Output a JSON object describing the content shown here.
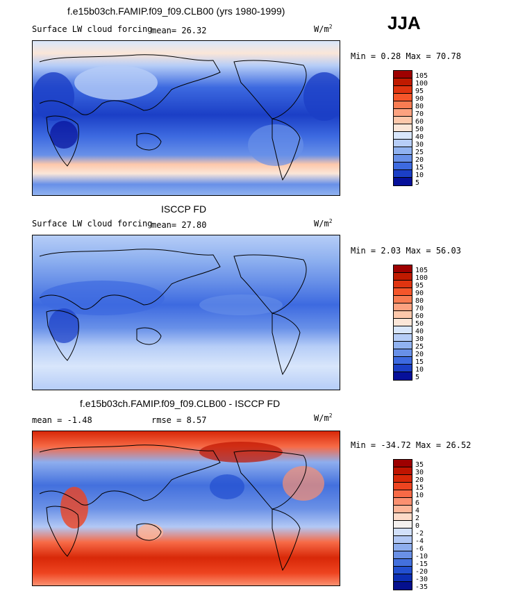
{
  "season": "JJA",
  "units_base": "W/m",
  "units_exp": "2",
  "panels": [
    {
      "title": "f.e15b03ch.FAMIP.f09_f09.CLB00 (yrs 1980-1999)",
      "variable": "Surface LW cloud forcing",
      "mean_text": "mean=   26.32",
      "minmax_text": "Min =   0.28 Max =  70.78",
      "levels": [
        "105",
        "100",
        "95",
        "90",
        "80",
        "70",
        "60",
        "50",
        "40",
        "30",
        "25",
        "20",
        "15",
        "10",
        "5"
      ],
      "colors": [
        "#9e0000",
        "#c01a00",
        "#e03410",
        "#f5562a",
        "#f87c52",
        "#fca280",
        "#fdc8ab",
        "#fbe6d8",
        "#d8e6fb",
        "#b6cdf7",
        "#90b2f0",
        "#6890e8",
        "#3d6ae0",
        "#1b3fc6",
        "#06109a"
      ]
    },
    {
      "title": "ISCCP FD",
      "variable": "Surface LW cloud forcing",
      "mean_text": "mean=   27.80",
      "minmax_text": "Min =   2.03 Max =  56.03",
      "levels": [
        "105",
        "100",
        "95",
        "90",
        "80",
        "70",
        "60",
        "50",
        "40",
        "30",
        "25",
        "20",
        "15",
        "10",
        "5"
      ],
      "colors": [
        "#9e0000",
        "#c01a00",
        "#e03410",
        "#f5562a",
        "#f87c52",
        "#fca280",
        "#fdc8ab",
        "#fbe6d8",
        "#d8e6fb",
        "#b6cdf7",
        "#90b2f0",
        "#6890e8",
        "#3d6ae0",
        "#1b3fc6",
        "#06109a"
      ]
    },
    {
      "title": "f.e15b03ch.FAMIP.f09_f09.CLB00 - ISCCP FD",
      "mean_text": "mean =  -1.48",
      "rmse_text": "rmse =   8.57",
      "minmax_text": "Min = -34.72 Max =  26.52",
      "levels": [
        "35",
        "30",
        "20",
        "15",
        "10",
        "6",
        "4",
        "2",
        "0",
        "-2",
        "-4",
        "-6",
        "-10",
        "-15",
        "-20",
        "-30",
        "-35"
      ],
      "colors": [
        "#9e0000",
        "#bf1400",
        "#d82808",
        "#ee4420",
        "#f76a46",
        "#fb9070",
        "#fdb598",
        "#fddac8",
        "#f4f0ee",
        "#d2e0fa",
        "#b2c8f5",
        "#8eaeee",
        "#6a90e6",
        "#4370dd",
        "#224fd0",
        "#0c2eb4",
        "#05108e"
      ]
    }
  ],
  "chart_data": [
    {
      "type": "heatmap",
      "title": "f.e15b03ch.FAMIP.f09_f09.CLB00 (yrs 1980-1999)",
      "subtitle": "Surface LW cloud forcing",
      "mean": 26.32,
      "min": 0.28,
      "max": 70.78,
      "units": "W/m2",
      "contour_levels": [
        5,
        10,
        15,
        20,
        25,
        30,
        40,
        50,
        60,
        70,
        80,
        90,
        95,
        100,
        105
      ]
    },
    {
      "type": "heatmap",
      "title": "ISCCP FD",
      "subtitle": "Surface LW cloud forcing",
      "mean": 27.8,
      "min": 2.03,
      "max": 56.03,
      "units": "W/m2",
      "contour_levels": [
        5,
        10,
        15,
        20,
        25,
        30,
        40,
        50,
        60,
        70,
        80,
        90,
        95,
        100,
        105
      ]
    },
    {
      "type": "heatmap",
      "title": "f.e15b03ch.FAMIP.f09_f09.CLB00 - ISCCP FD",
      "mean": -1.48,
      "rmse": 8.57,
      "min": -34.72,
      "max": 26.52,
      "units": "W/m2",
      "contour_levels": [
        -35,
        -30,
        -20,
        -15,
        -10,
        -6,
        -4,
        -2,
        0,
        2,
        4,
        6,
        10,
        15,
        20,
        30,
        35
      ]
    }
  ]
}
